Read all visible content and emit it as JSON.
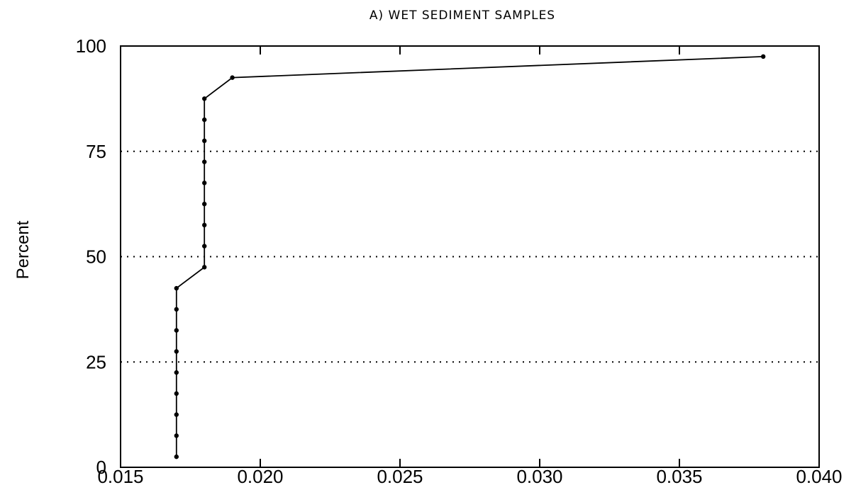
{
  "chart_data": {
    "type": "line",
    "title": "A)  WET SEDIMENT SAMPLES",
    "xlabel": "",
    "ylabel": "Percent",
    "xlim": [
      0.015,
      0.04
    ],
    "ylim": [
      0,
      100
    ],
    "x_ticks": [
      "0.015",
      "0.020",
      "0.025",
      "0.030",
      "0.035",
      "0.040"
    ],
    "y_ticks": [
      "0",
      "25",
      "50",
      "75",
      "100"
    ],
    "gridlines_y": [
      25,
      50,
      75
    ],
    "grid_style": "dotted horizontal",
    "series": [
      {
        "points": [
          [
            0.017,
            2.5
          ],
          [
            0.017,
            7.5
          ],
          [
            0.017,
            12.5
          ],
          [
            0.017,
            17.5
          ],
          [
            0.017,
            22.5
          ],
          [
            0.017,
            27.5
          ],
          [
            0.017,
            32.5
          ],
          [
            0.017,
            37.5
          ],
          [
            0.017,
            42.5
          ],
          [
            0.018,
            47.5
          ],
          [
            0.018,
            52.5
          ],
          [
            0.018,
            57.5
          ],
          [
            0.018,
            62.5
          ],
          [
            0.018,
            67.5
          ],
          [
            0.018,
            72.5
          ],
          [
            0.018,
            77.5
          ],
          [
            0.018,
            82.5
          ],
          [
            0.018,
            87.5
          ],
          [
            0.019,
            92.5
          ],
          [
            0.038,
            97.5
          ]
        ]
      }
    ]
  }
}
